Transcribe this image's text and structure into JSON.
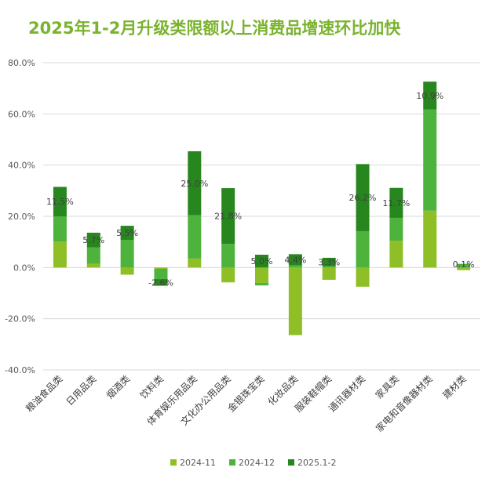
{
  "chart_data": {
    "type": "bar",
    "stacked": true,
    "title": "2025年1-2月升级类限额以上消费品增速环比加快",
    "categories": [
      "粮油食品类",
      "日用品类",
      "烟酒类",
      "饮料类",
      "体育娱乐用品类",
      "文化办公用品类",
      "金银珠宝类",
      "化妆品类",
      "服装鞋帽类",
      "通讯器材类",
      "家具类",
      "家电和音像器材类",
      "建材类"
    ],
    "series": [
      {
        "name": "2024-11",
        "color": "#8fbf26",
        "values": [
          10.1,
          1.5,
          -2.8,
          -0.5,
          3.5,
          -5.8,
          -6.0,
          -26.4,
          -4.8,
          -7.5,
          10.5,
          22.2,
          -1.0
        ]
      },
      {
        "name": "2024-12",
        "color": "#4db33d",
        "values": [
          9.9,
          6.4,
          10.8,
          -4.0,
          16.9,
          9.2,
          -1.0,
          0.8,
          0.5,
          14.2,
          8.9,
          39.5,
          1.3
        ]
      },
      {
        "name": "2025.1-2",
        "color": "#27861e",
        "values": [
          11.5,
          5.7,
          5.5,
          -2.6,
          25.0,
          21.8,
          5.0,
          4.4,
          3.3,
          26.2,
          11.7,
          10.9,
          0.1
        ]
      }
    ],
    "data_labels": [
      "11.5%",
      "5.7%",
      "5.5%",
      "-2.6%",
      "25.0%",
      "21.8%",
      "5.0%",
      "4.4%",
      "3.3%",
      "26.2%",
      "11.7%",
      "10.9%",
      "0.1%"
    ],
    "y_ticks": [
      "80.0%",
      "60.0%",
      "40.0%",
      "20.0%",
      "0.0%",
      "-20.0%",
      "-40.0%"
    ],
    "ylim": [
      -40,
      80
    ],
    "grid": true,
    "legend_position": "bottom"
  }
}
